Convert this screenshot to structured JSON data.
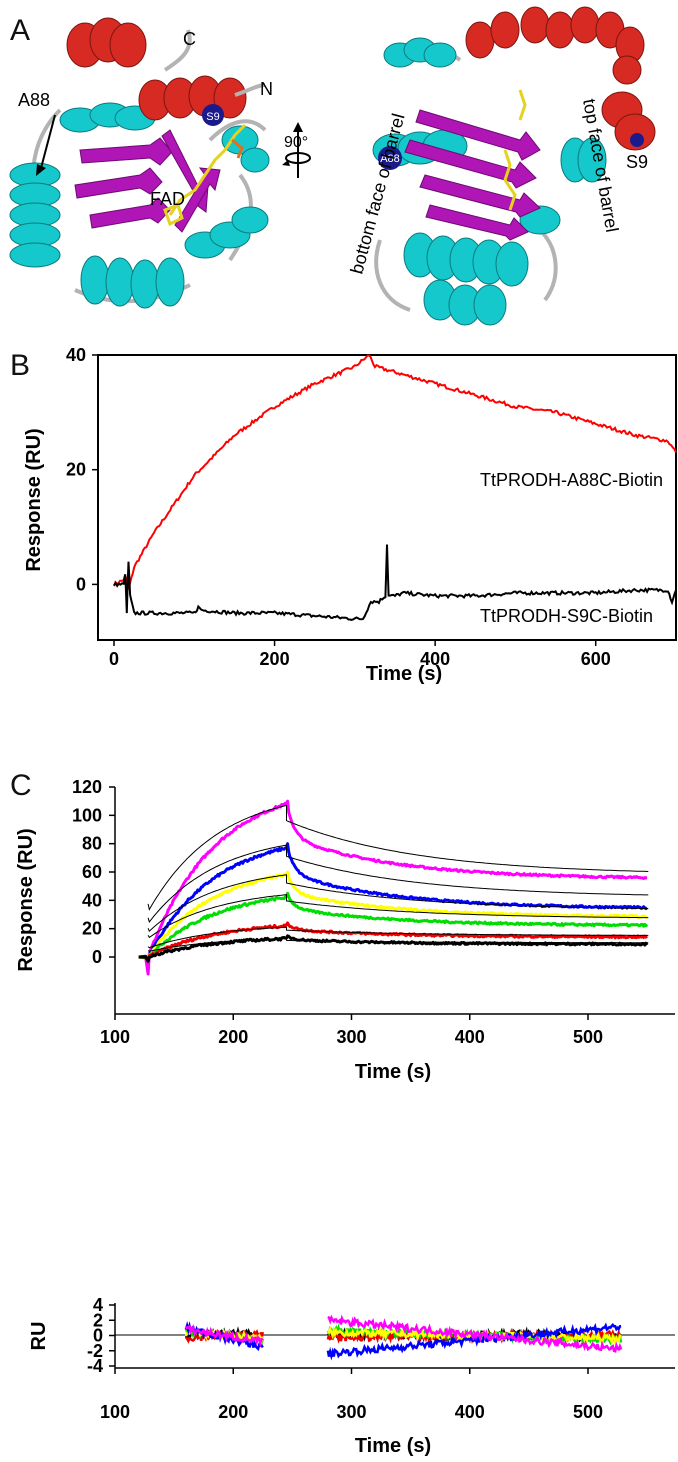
{
  "panels": {
    "a": {
      "letter": "A",
      "labels": {
        "c_term": "C",
        "n_term": "N",
        "a88": "A88",
        "s9": "S9",
        "fad": "FAD",
        "rotation": "90°",
        "a88_right": "A88",
        "s9_right": "S9",
        "bottom_face": "bottom face of barrel",
        "top_face": "top face of barrel"
      },
      "colors": {
        "helix": "#14c8cc",
        "strand": "#b015b5",
        "nterm_helix": "#d62a22",
        "loop": "#b3b3b3",
        "fad": "#e6d21e",
        "site": "#1a1a8c"
      }
    },
    "b": {
      "letter": "B"
    },
    "c": {
      "letter": "C"
    }
  },
  "chart_data": [
    {
      "id": "B",
      "type": "line",
      "xlabel": "Time (s)",
      "ylabel": "Response (RU)",
      "xlim": [
        0,
        700
      ],
      "ylim": [
        -9,
        40
      ],
      "xticks": [
        0,
        200,
        400,
        600
      ],
      "yticks": [
        0,
        20,
        40
      ],
      "grid": false,
      "series": [
        {
          "name": "TtPRODH-A88C-Biotin",
          "color": "#ff0000",
          "x": [
            0,
            15,
            18,
            25,
            50,
            100,
            150,
            200,
            250,
            300,
            318,
            325,
            350,
            400,
            450,
            500,
            550,
            600,
            650,
            690,
            700
          ],
          "y": [
            0,
            1,
            -1,
            3,
            9,
            19,
            26,
            31,
            35,
            38,
            40,
            38,
            37,
            35,
            33,
            31,
            30,
            28,
            26,
            25,
            23
          ]
        },
        {
          "name": "TtPRODH-S9C-Biotin",
          "color": "#000000",
          "x": [
            0,
            12,
            14,
            16,
            18,
            20,
            25,
            50,
            100,
            105,
            110,
            150,
            200,
            250,
            300,
            310,
            320,
            330,
            338,
            340,
            342,
            350,
            360,
            400,
            450,
            500,
            550,
            600,
            650,
            690,
            695,
            700
          ],
          "y": [
            0,
            0,
            2,
            -5,
            4,
            -2,
            -5,
            -5,
            -5,
            -4,
            -4.5,
            -5,
            -5,
            -5.5,
            -6,
            -6,
            -3,
            -3,
            -2,
            7,
            -2,
            -2,
            -1.5,
            -2,
            -2,
            -1.5,
            -1.5,
            -1.5,
            -1,
            -1,
            -3,
            -1
          ]
        }
      ]
    },
    {
      "id": "C",
      "type": "line",
      "xlabel": "Time (s)",
      "ylabel": "Response (RU)",
      "xlim": [
        100,
        560
      ],
      "ylim": [
        -15,
        120
      ],
      "xticks": [
        100,
        200,
        300,
        400,
        500
      ],
      "yticks": [
        0,
        20,
        40,
        60,
        80,
        100,
        120
      ],
      "grid": false,
      "series": [
        {
          "color": "#ff00ff",
          "assoc_end": 108,
          "peak": 110,
          "end": 55
        },
        {
          "color": "#0000ff",
          "assoc_end": 77,
          "peak": 80,
          "end": 34
        },
        {
          "color": "#ffff00",
          "assoc_end": 58,
          "peak": 60,
          "end": 28
        },
        {
          "color": "#00dd00",
          "assoc_end": 42,
          "peak": 45,
          "end": 22
        },
        {
          "color": "#ee0000",
          "assoc_end": 22,
          "peak": 24,
          "end": 14
        },
        {
          "color": "#000000",
          "assoc_end": 13,
          "peak": 15,
          "end": 9
        }
      ],
      "fits": [
        {
          "color": "#000000",
          "assoc_end": 107,
          "end": 58
        },
        {
          "color": "#000000",
          "assoc_end": 79,
          "end": 42
        },
        {
          "color": "#000000",
          "assoc_end": 58,
          "end": 33
        },
        {
          "color": "#000000",
          "assoc_end": 44,
          "end": 27
        },
        {
          "color": "#000000",
          "assoc_end": 21,
          "end": 15
        },
        {
          "color": "#000000",
          "assoc_end": 13,
          "end": 10
        }
      ],
      "association_window": [
        128,
        245
      ],
      "dissociation_window": [
        245,
        550
      ]
    },
    {
      "id": "C-residuals",
      "type": "line",
      "xlabel": "Time (s)",
      "ylabel": "RU",
      "xlim": [
        100,
        575
      ],
      "ylim": [
        -4,
        4
      ],
      "xticks": [
        100,
        200,
        300,
        400,
        500
      ],
      "yticks": [
        -4,
        -2,
        0,
        2,
        4
      ],
      "grid": false,
      "segments": [
        [
          160,
          225
        ],
        [
          280,
          528
        ]
      ],
      "series_colors": [
        "#000000",
        "#ee0000",
        "#00dd00",
        "#ffff00",
        "#0000ff",
        "#ff00ff"
      ]
    }
  ]
}
